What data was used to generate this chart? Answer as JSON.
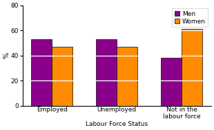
{
  "category_labels": [
    "Employed",
    "Unemployed",
    "Not in the\nlabour force"
  ],
  "xlabel": "Labour Force Status",
  "men_values": [
    53,
    53,
    38
  ],
  "women_values": [
    47,
    47,
    61
  ],
  "men_color": "#8B008B",
  "women_color": "#FF8C00",
  "ylabel": "%",
  "ylim": [
    0,
    80
  ],
  "yticks": [
    0,
    20,
    40,
    60,
    80
  ],
  "legend_labels": [
    "Men",
    "Women"
  ],
  "bar_width": 0.32,
  "background_color": "#ffffff",
  "tick_fontsize": 6.5,
  "legend_fontsize": 6.5,
  "xlabel_fontsize": 6.5,
  "ylabel_fontsize": 7,
  "white_lines": [
    20,
    40,
    60
  ]
}
